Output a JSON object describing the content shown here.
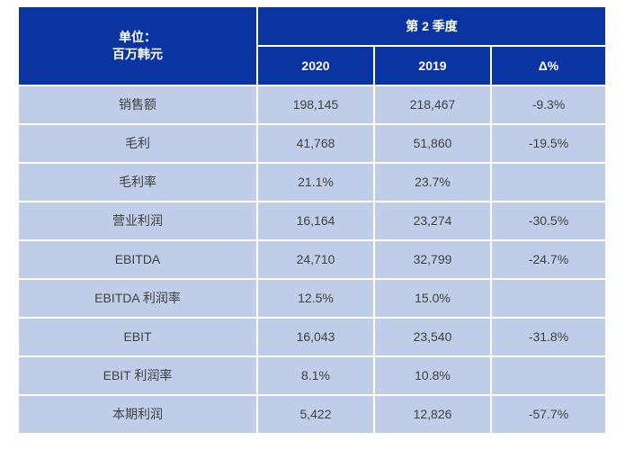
{
  "colors": {
    "header_bg": "#0a34a2",
    "row_bg": "#bfcde8",
    "grid_line": "#ffffff",
    "header_text": "#ffffff",
    "body_text": "#3f3f3f",
    "page_bg": "#ffffff"
  },
  "chart_data": {
    "type": "table",
    "title": "第 2 季度",
    "unit_line1": "单位：",
    "unit_line2": "百万韩元",
    "columns": [
      "2020",
      "2019",
      "Δ%"
    ],
    "rows": [
      {
        "label": "销售额",
        "values": [
          "198,145",
          "218,467",
          "-9.3%"
        ]
      },
      {
        "label": "毛利",
        "values": [
          "41,768",
          "51,860",
          "-19.5%"
        ]
      },
      {
        "label": "毛利率",
        "values": [
          "21.1%",
          "23.7%",
          ""
        ]
      },
      {
        "label": "营业利润",
        "values": [
          "16,164",
          "23,274",
          "-30.5%"
        ]
      },
      {
        "label": "EBITDA",
        "values": [
          "24,710",
          "32,799",
          "-24.7%"
        ]
      },
      {
        "label": "EBITDA 利润率",
        "values": [
          "12.5%",
          "15.0%",
          ""
        ]
      },
      {
        "label": "EBIT",
        "values": [
          "16,043",
          "23,540",
          "-31.8%"
        ]
      },
      {
        "label": "EBIT 利润率",
        "values": [
          "8.1%",
          "10.8%",
          ""
        ]
      },
      {
        "label": "本期利润",
        "values": [
          "5,422",
          "12,826",
          "-57.7%"
        ]
      }
    ]
  }
}
